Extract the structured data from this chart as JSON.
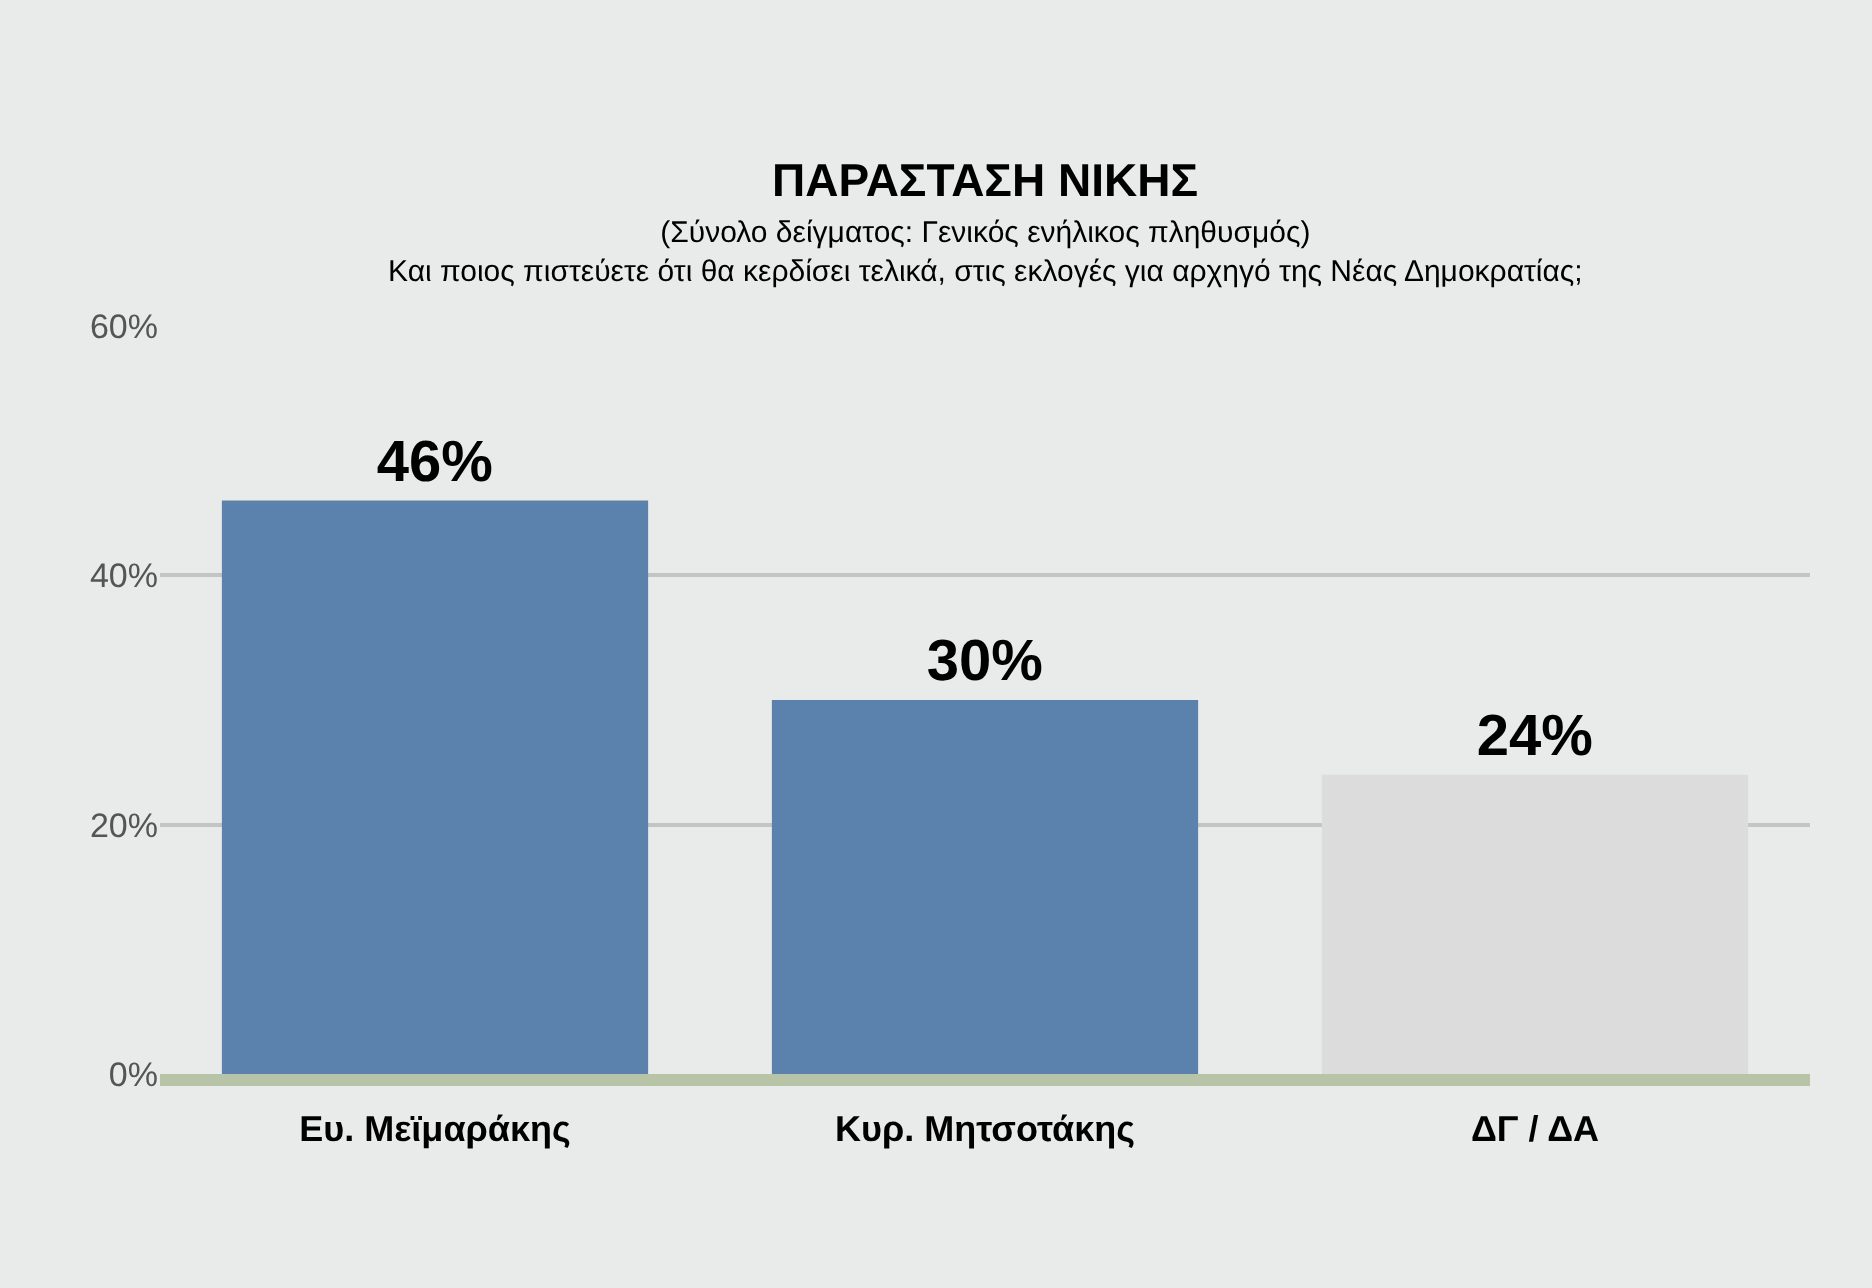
{
  "chart_data": {
    "type": "bar",
    "title": "ΠΑΡΑΣΤΑΣΗ ΝΙΚΗΣ",
    "subtitle": "(Σύνολο δείγματος: Γενικός ενήλικος πληθυσμός)\nΚαι ποιος πιστεύετε ότι θα κερδίσει τελικά, στις εκλογές για αρχηγό της Νέας Δημοκρατίας;",
    "categories": [
      "Ευ. Μεϊμαράκης",
      "Κυρ. Μητσοτάκης",
      "ΔΓ / ΔΑ"
    ],
    "values": [
      46,
      30,
      24
    ],
    "colors": [
      "#5a82ac",
      "#5a82ac",
      "#dcdcdc"
    ],
    "value_labels": [
      "46%",
      "30%",
      "24%"
    ],
    "ylim": [
      0,
      60
    ],
    "yticks": [
      {
        "value": 0,
        "label": "0%"
      },
      {
        "value": 20,
        "label": "20%"
      },
      {
        "value": 40,
        "label": "40%"
      },
      {
        "value": 60,
        "label": "60%"
      }
    ],
    "grid": "y"
  }
}
